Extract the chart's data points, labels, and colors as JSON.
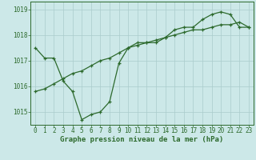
{
  "line1_x": [
    0,
    1,
    2,
    3,
    4,
    5,
    6,
    7,
    8,
    9,
    10,
    11,
    12,
    13,
    14,
    15,
    16,
    17,
    18,
    19,
    20,
    21,
    22,
    23
  ],
  "line1_y": [
    1017.5,
    1017.1,
    1017.1,
    1016.2,
    1015.8,
    1014.7,
    1014.9,
    1015.0,
    1015.4,
    1016.9,
    1017.5,
    1017.7,
    1017.7,
    1017.7,
    1017.9,
    1018.2,
    1018.3,
    1018.3,
    1018.6,
    1018.8,
    1018.9,
    1018.8,
    1018.3,
    1018.3
  ],
  "line2_x": [
    0,
    1,
    2,
    3,
    4,
    5,
    6,
    7,
    8,
    9,
    10,
    11,
    12,
    13,
    14,
    15,
    16,
    17,
    18,
    19,
    20,
    21,
    22,
    23
  ],
  "line2_y": [
    1015.8,
    1015.9,
    1016.1,
    1016.3,
    1016.5,
    1016.6,
    1016.8,
    1017.0,
    1017.1,
    1017.3,
    1017.5,
    1017.6,
    1017.7,
    1017.8,
    1017.9,
    1018.0,
    1018.1,
    1018.2,
    1018.2,
    1018.3,
    1018.4,
    1018.4,
    1018.5,
    1018.3
  ],
  "line_color": "#2d6a2d",
  "bg_color": "#cce8e8",
  "grid_color": "#aacccc",
  "xlabel": "Graphe pression niveau de la mer (hPa)",
  "ylim": [
    1014.5,
    1019.3
  ],
  "xlim": [
    -0.5,
    23.5
  ],
  "yticks": [
    1015,
    1016,
    1017,
    1018,
    1019
  ],
  "xticks": [
    0,
    1,
    2,
    3,
    4,
    5,
    6,
    7,
    8,
    9,
    10,
    11,
    12,
    13,
    14,
    15,
    16,
    17,
    18,
    19,
    20,
    21,
    22,
    23
  ],
  "tick_fontsize": 5.5,
  "xlabel_fontsize": 6.5
}
